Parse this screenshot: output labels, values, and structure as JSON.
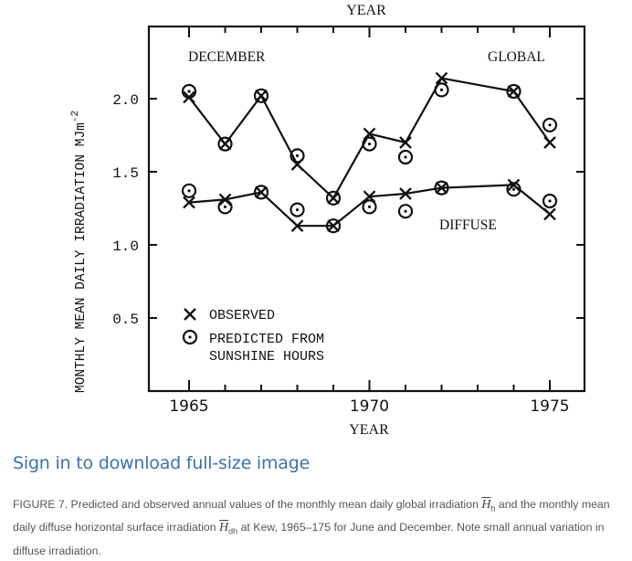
{
  "chart_data": {
    "type": "line",
    "title_top_axis": "YEAR",
    "xlabel": "YEAR",
    "ylabel": "MONTHLY MEAN DAILY IRRADIATION MJm",
    "ylabel_superscript": "-2",
    "xlim": [
      1964.3,
      1976.0
    ],
    "ylim": [
      0,
      2.5
    ],
    "x_ticks": [
      1965,
      1966,
      1967,
      1968,
      1969,
      1970,
      1971,
      1972,
      1973,
      1974,
      1975
    ],
    "x_tick_labels": [
      "1965",
      "1970",
      "1975"
    ],
    "x_tick_label_values": [
      1965,
      1970,
      1975
    ],
    "y_ticks": [
      0.5,
      1.0,
      1.5,
      2.0
    ],
    "y_tick_labels": [
      "0.5",
      "1.0",
      "1.5",
      "2.0"
    ],
    "grid": false,
    "annotations": {
      "month": "DECEMBER",
      "global_label": "GLOBAL",
      "diffuse_label": "DIFFUSE"
    },
    "legend": {
      "position": "bottom-left",
      "entries": [
        {
          "marker": "x",
          "label": [
            "OBSERVED"
          ]
        },
        {
          "marker": "circle-dot",
          "label": [
            "PREDICTED FROM",
            "SUNSHINE HOURS"
          ]
        }
      ]
    },
    "x": [
      1965,
      1966,
      1967,
      1968,
      1969,
      1970,
      1971,
      1972,
      1974,
      1975
    ],
    "series": [
      {
        "name": "Global observed",
        "group": "global",
        "marker": "x",
        "connected": true,
        "values": [
          2.01,
          1.69,
          2.02,
          1.55,
          1.32,
          1.76,
          1.7,
          2.14,
          2.05,
          1.7
        ]
      },
      {
        "name": "Global predicted",
        "group": "global",
        "marker": "circle-dot",
        "connected": false,
        "values": [
          2.05,
          1.69,
          2.02,
          1.61,
          1.32,
          1.69,
          1.6,
          2.06,
          2.05,
          1.82
        ]
      },
      {
        "name": "Diffuse observed",
        "group": "diffuse",
        "marker": "x",
        "connected": true,
        "values": [
          1.29,
          1.31,
          1.36,
          1.13,
          1.13,
          1.33,
          1.35,
          1.39,
          1.41,
          1.21
        ]
      },
      {
        "name": "Diffuse predicted",
        "group": "diffuse",
        "marker": "circle-dot",
        "connected": false,
        "values": [
          1.37,
          1.26,
          1.36,
          1.24,
          1.13,
          1.26,
          1.23,
          1.39,
          1.38,
          1.3
        ]
      }
    ]
  },
  "page": {
    "download_link": "Sign in to download full-size image",
    "caption": {
      "label": "FIGURE 7.",
      "part1": " Predicted and observed annual values of the monthly mean daily global irradiation ",
      "sym1": "H",
      "sub1": "h",
      "part2": " and the monthly mean daily diffuse horizontal surface irradiation ",
      "sym2": "H",
      "sub2": "dh",
      "part3": " at Kew, 1965–175 for June and December. Note small annual variation in diffuse irradiation."
    }
  },
  "colors": {
    "ink": "#111111",
    "link": "#3a74ab",
    "caption": "#555555"
  }
}
